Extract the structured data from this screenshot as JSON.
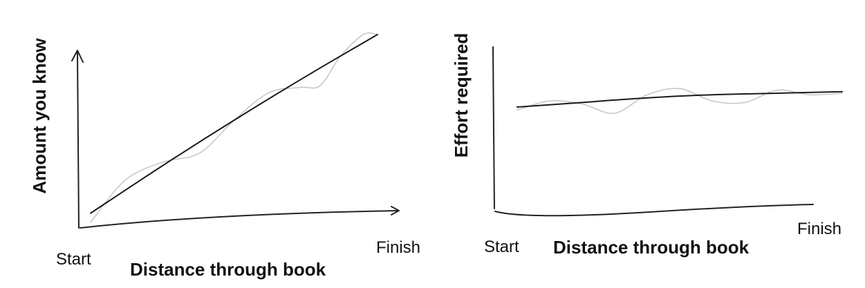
{
  "chart_data": [
    {
      "type": "line",
      "title": "",
      "xlabel": "Distance through book",
      "ylabel": "Amount you know",
      "x_tick_labels": [
        "Start",
        "Finish"
      ],
      "xlim": [
        0,
        1
      ],
      "ylim": [
        0,
        1
      ],
      "grid": false,
      "series": [
        {
          "x": [
            0,
            0.25,
            0.5,
            0.75,
            1
          ],
          "values": [
            0.02,
            0.28,
            0.53,
            0.77,
            1.0
          ],
          "style": "trend"
        },
        {
          "x": [
            0,
            0.12,
            0.25,
            0.38,
            0.5,
            0.62,
            0.73,
            0.8,
            0.87,
            0.95,
            1
          ],
          "values": [
            -0.03,
            0.2,
            0.3,
            0.35,
            0.53,
            0.68,
            0.71,
            0.72,
            0.88,
            1.0,
            1.0
          ],
          "style": "noisy"
        }
      ]
    },
    {
      "type": "line",
      "title": "",
      "xlabel": "Distance through book",
      "ylabel": "Effort required",
      "x_tick_labels": [
        "Start",
        "Finish"
      ],
      "xlim": [
        0,
        1
      ],
      "ylim": [
        0,
        1
      ],
      "grid": false,
      "series": [
        {
          "x": [
            0,
            0.2,
            0.4,
            0.6,
            0.8,
            1
          ],
          "values": [
            0.65,
            0.68,
            0.71,
            0.73,
            0.74,
            0.75
          ],
          "style": "trend"
        },
        {
          "x": [
            0,
            0.1,
            0.2,
            0.3,
            0.4,
            0.5,
            0.6,
            0.7,
            0.8,
            0.9,
            1
          ],
          "values": [
            0.63,
            0.69,
            0.67,
            0.61,
            0.73,
            0.77,
            0.69,
            0.68,
            0.76,
            0.73,
            0.74
          ],
          "style": "noisy"
        }
      ]
    }
  ],
  "colors": {
    "trend": "#1a1a1a",
    "noisy": "#c8c8c8",
    "axis": "#222222",
    "text": "#111111"
  }
}
